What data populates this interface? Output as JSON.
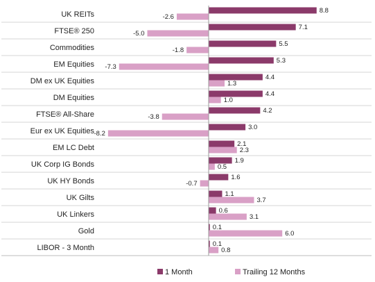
{
  "chart_data": {
    "type": "bar",
    "orientation": "horizontal",
    "categories": [
      "UK REITs",
      "FTSE® 250",
      "Commodities",
      "EM Equities",
      "DM ex UK Equities",
      "DM Equities",
      "FTSE® All-Share",
      "Eur ex UK Equities",
      "EM LC Debt",
      "UK Corp IG Bonds",
      "UK HY Bonds",
      "UK Gilts",
      "UK Linkers",
      "Gold",
      "LIBOR - 3 Month"
    ],
    "series": [
      {
        "name": "1 Month",
        "color": "#8b3a6a",
        "values": [
          8.8,
          7.1,
          5.5,
          5.3,
          4.4,
          4.4,
          4.2,
          3.0,
          2.1,
          1.9,
          1.6,
          1.1,
          0.6,
          0.1,
          0.1
        ],
        "labels": [
          "8.8",
          "7.1",
          "5.5",
          "5.3",
          "4.4",
          "4.4",
          "4.2",
          "3.0",
          "2.1",
          "1.9",
          "1.6",
          "1.1",
          "0.6",
          "0.1",
          "0.1"
        ]
      },
      {
        "name": "Trailing 12 Months",
        "color": "#d9a0c6",
        "values": [
          -2.6,
          -5.0,
          -1.8,
          -7.3,
          1.3,
          1.0,
          -3.8,
          -8.2,
          2.3,
          0.5,
          -0.7,
          3.7,
          3.1,
          6.0,
          0.8
        ],
        "labels": [
          "-2.6",
          "-5.0",
          "-1.8",
          "-7.3",
          "1.3",
          "1.0",
          "-3.8",
          "-8.2",
          "2.3",
          "0.5",
          "-0.7",
          "3.7",
          "3.1",
          "6.0",
          "0.8"
        ]
      }
    ],
    "xlim": [
      -10.5,
      10
    ],
    "grid": "horizontal-row-separators",
    "legend_position": "bottom"
  }
}
